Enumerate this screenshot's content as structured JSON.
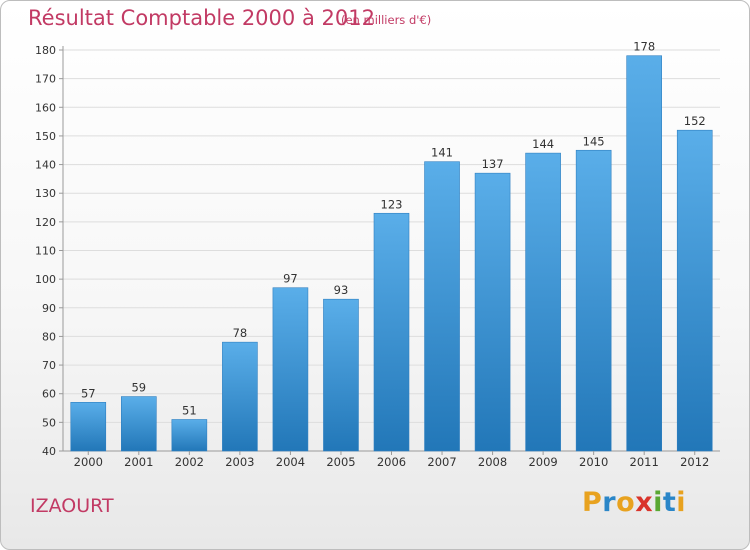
{
  "header": {
    "title": "Résultat Comptable 2000 à 2012",
    "subtitle": "(en milliers d'€)"
  },
  "footer": {
    "place": "IZAOURT",
    "logo_text": "Proxiti"
  },
  "colors": {
    "title": "#c23a64",
    "bar_top": "#5aaee9",
    "bar_bottom": "#2277b8",
    "grid": "#dddddd",
    "logo_letters": [
      "#e8a21f",
      "#2a86c8",
      "#e8a21f",
      "#d9342b",
      "#5aa832",
      "#2a86c8",
      "#e8a21f"
    ]
  },
  "chart_data": {
    "type": "bar",
    "title": "Résultat Comptable 2000 à 2012",
    "subtitle": "(en milliers d'€)",
    "xlabel": "",
    "ylabel": "",
    "categories": [
      "2000",
      "2001",
      "2002",
      "2003",
      "2004",
      "2005",
      "2006",
      "2007",
      "2008",
      "2009",
      "2010",
      "2011",
      "2012"
    ],
    "values": [
      57,
      59,
      51,
      78,
      97,
      93,
      123,
      141,
      137,
      144,
      145,
      178,
      152
    ],
    "ylim": [
      40,
      180
    ],
    "yticks": [
      40,
      50,
      60,
      70,
      80,
      90,
      100,
      110,
      120,
      130,
      140,
      150,
      160,
      170,
      180
    ],
    "grid": true,
    "grid_axis": "y",
    "data_labels": true
  }
}
